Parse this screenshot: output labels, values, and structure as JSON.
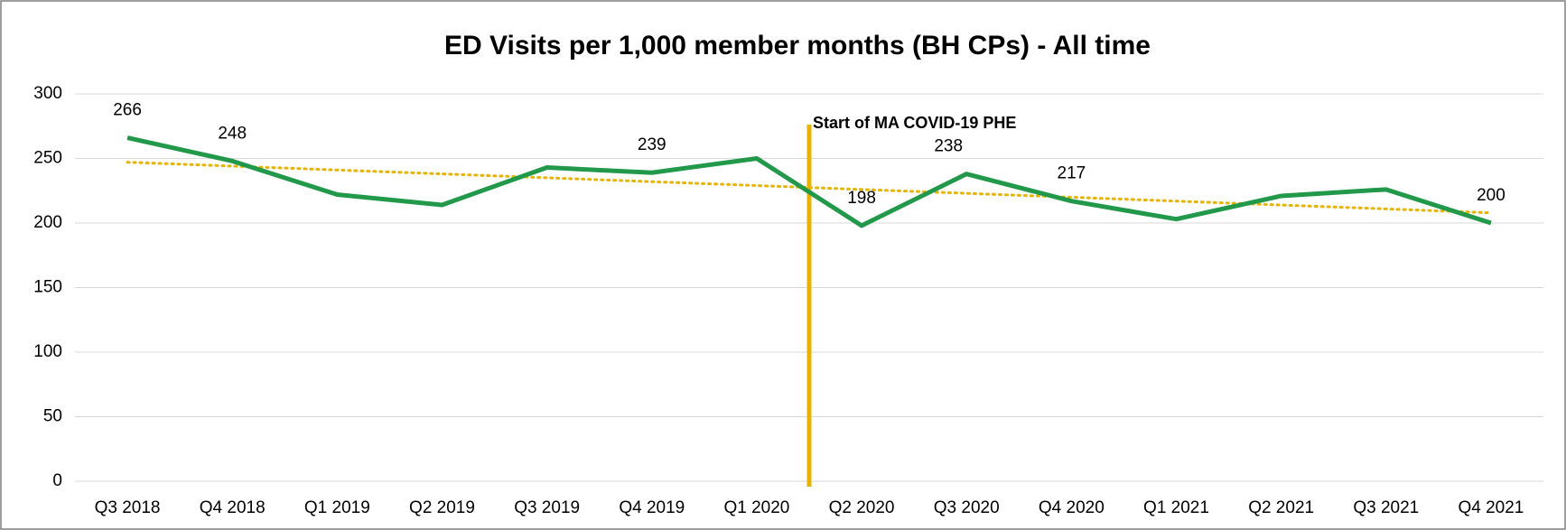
{
  "chart_data": {
    "type": "line",
    "title": "ED Visits per 1,000 member months (BH CPs) - All time",
    "categories": [
      "Q3 2018",
      "Q4 2018",
      "Q1 2019",
      "Q2 2019",
      "Q3 2019",
      "Q4 2019",
      "Q1 2020",
      "Q2 2020",
      "Q3 2020",
      "Q4 2020",
      "Q1 2021",
      "Q2 2021",
      "Q3 2021",
      "Q4 2021"
    ],
    "values": [
      266,
      248,
      222,
      214,
      243,
      239,
      250,
      198,
      238,
      217,
      203,
      221,
      226,
      200
    ],
    "value_labels": [
      266,
      248,
      null,
      null,
      null,
      239,
      null,
      198,
      238,
      217,
      null,
      null,
      null,
      200
    ],
    "color": "#22994a",
    "trendline": {
      "type": "linear",
      "color": "#e6b400"
    },
    "annotation": {
      "text": "Start of MA COVID-19 PHE",
      "after": "Q1 2020",
      "color": "#e6b400"
    },
    "ylim": [
      0,
      300
    ],
    "yticks": [
      0,
      50,
      100,
      150,
      200,
      250,
      300
    ],
    "grid": true
  }
}
